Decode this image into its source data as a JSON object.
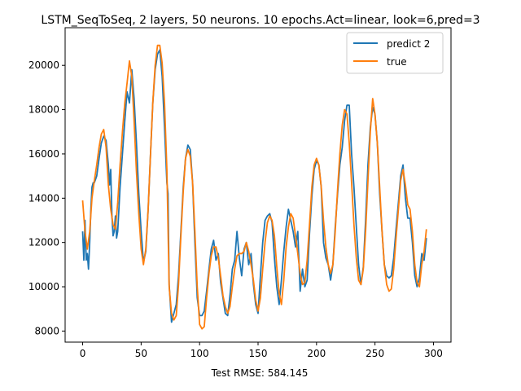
{
  "chart_data": {
    "type": "line",
    "title": "LSTM_SeqToSeq, 2 layers, 50 neurons. 10 epochs.Act=linear, look=6,pred=3",
    "xlabel": "Test RMSE: 584.145",
    "ylabel": "",
    "xlim": [
      -15,
      315
    ],
    "ylim": [
      7500,
      21700
    ],
    "xticks": [
      0,
      50,
      100,
      150,
      200,
      250,
      300
    ],
    "yticks": [
      8000,
      10000,
      12000,
      14000,
      16000,
      18000,
      20000
    ],
    "xtick_labels": [
      "0",
      "50",
      "100",
      "150",
      "200",
      "250",
      "300"
    ],
    "ytick_labels": [
      "8000",
      "10000",
      "12000",
      "14000",
      "16000",
      "18000",
      "20000"
    ],
    "grid": false,
    "legend_position": "top-right",
    "series": [
      {
        "name": "predict 2",
        "color": "#1f77b4",
        "points": [
          [
            0,
            12500
          ],
          [
            1,
            11200
          ],
          [
            2,
            13000
          ],
          [
            3,
            11200
          ],
          [
            4,
            11500
          ],
          [
            5,
            10800
          ],
          [
            6,
            12000
          ],
          [
            7,
            13500
          ],
          [
            8,
            14500
          ],
          [
            9,
            14700
          ],
          [
            10,
            14700
          ],
          [
            12,
            15000
          ],
          [
            14,
            15800
          ],
          [
            16,
            16500
          ],
          [
            18,
            16800
          ],
          [
            20,
            16600
          ],
          [
            22,
            15500
          ],
          [
            23,
            14600
          ],
          [
            24,
            15300
          ],
          [
            25,
            13200
          ],
          [
            26,
            12300
          ],
          [
            27,
            12500
          ],
          [
            28,
            13200
          ],
          [
            29,
            12200
          ],
          [
            30,
            12500
          ],
          [
            32,
            14500
          ],
          [
            34,
            16000
          ],
          [
            36,
            17500
          ],
          [
            38,
            18800
          ],
          [
            40,
            18300
          ],
          [
            42,
            19800
          ],
          [
            44,
            18500
          ],
          [
            46,
            16500
          ],
          [
            48,
            14200
          ],
          [
            50,
            12500
          ],
          [
            52,
            11100
          ],
          [
            54,
            11600
          ],
          [
            56,
            13500
          ],
          [
            58,
            16000
          ],
          [
            60,
            18300
          ],
          [
            62,
            19800
          ],
          [
            64,
            20500
          ],
          [
            66,
            20700
          ],
          [
            68,
            19500
          ],
          [
            70,
            17200
          ],
          [
            72,
            14700
          ],
          [
            73,
            14200
          ],
          [
            74,
            10100
          ],
          [
            76,
            8400
          ],
          [
            78,
            8800
          ],
          [
            80,
            9200
          ],
          [
            82,
            10500
          ],
          [
            84,
            12500
          ],
          [
            86,
            14500
          ],
          [
            88,
            15800
          ],
          [
            90,
            16400
          ],
          [
            92,
            16200
          ],
          [
            94,
            14700
          ],
          [
            96,
            12000
          ],
          [
            98,
            9500
          ],
          [
            100,
            8700
          ],
          [
            102,
            8700
          ],
          [
            104,
            8900
          ],
          [
            106,
            9800
          ],
          [
            108,
            10800
          ],
          [
            110,
            11700
          ],
          [
            112,
            12100
          ],
          [
            114,
            11200
          ],
          [
            116,
            11500
          ],
          [
            118,
            10200
          ],
          [
            120,
            9500
          ],
          [
            122,
            8800
          ],
          [
            124,
            8700
          ],
          [
            126,
            9600
          ],
          [
            128,
            10800
          ],
          [
            130,
            11200
          ],
          [
            132,
            12500
          ],
          [
            134,
            11300
          ],
          [
            136,
            10500
          ],
          [
            138,
            11700
          ],
          [
            140,
            12000
          ],
          [
            142,
            11000
          ],
          [
            144,
            11500
          ],
          [
            146,
            10100
          ],
          [
            148,
            9200
          ],
          [
            150,
            8800
          ],
          [
            152,
            10500
          ],
          [
            154,
            12000
          ],
          [
            156,
            13000
          ],
          [
            158,
            13200
          ],
          [
            160,
            13300
          ],
          [
            162,
            12900
          ],
          [
            164,
            11300
          ],
          [
            166,
            10000
          ],
          [
            168,
            9200
          ],
          [
            170,
            10300
          ],
          [
            172,
            11600
          ],
          [
            174,
            12700
          ],
          [
            176,
            13500
          ],
          [
            178,
            13000
          ],
          [
            180,
            12500
          ],
          [
            182,
            11800
          ],
          [
            184,
            12500
          ],
          [
            186,
            9800
          ],
          [
            188,
            10800
          ],
          [
            190,
            10000
          ],
          [
            192,
            10300
          ],
          [
            194,
            12400
          ],
          [
            196,
            14100
          ],
          [
            198,
            15300
          ],
          [
            200,
            15700
          ],
          [
            202,
            15500
          ],
          [
            204,
            14500
          ],
          [
            206,
            12000
          ],
          [
            208,
            11300
          ],
          [
            210,
            11000
          ],
          [
            212,
            10300
          ],
          [
            214,
            11000
          ],
          [
            216,
            12700
          ],
          [
            218,
            14200
          ],
          [
            220,
            15500
          ],
          [
            222,
            16300
          ],
          [
            224,
            17500
          ],
          [
            226,
            18200
          ],
          [
            228,
            18200
          ],
          [
            230,
            16000
          ],
          [
            232,
            14500
          ],
          [
            234,
            12700
          ],
          [
            236,
            11000
          ],
          [
            238,
            10100
          ],
          [
            240,
            10900
          ],
          [
            242,
            13000
          ],
          [
            244,
            15500
          ],
          [
            246,
            17200
          ],
          [
            248,
            18100
          ],
          [
            250,
            17800
          ],
          [
            252,
            16500
          ],
          [
            254,
            14200
          ],
          [
            256,
            12500
          ],
          [
            258,
            11000
          ],
          [
            260,
            10500
          ],
          [
            262,
            10400
          ],
          [
            264,
            10500
          ],
          [
            266,
            11300
          ],
          [
            268,
            12600
          ],
          [
            270,
            13800
          ],
          [
            272,
            15000
          ],
          [
            274,
            15500
          ],
          [
            276,
            14000
          ],
          [
            278,
            13100
          ],
          [
            280,
            13100
          ],
          [
            282,
            12000
          ],
          [
            284,
            10500
          ],
          [
            286,
            10000
          ],
          [
            288,
            10400
          ],
          [
            290,
            11500
          ],
          [
            292,
            11200
          ],
          [
            294,
            12200
          ]
        ]
      },
      {
        "name": "true",
        "color": "#ff7f0e",
        "points": [
          [
            0,
            13900
          ],
          [
            2,
            12500
          ],
          [
            4,
            11700
          ],
          [
            6,
            12500
          ],
          [
            8,
            14000
          ],
          [
            10,
            14800
          ],
          [
            12,
            15500
          ],
          [
            14,
            16300
          ],
          [
            16,
            16900
          ],
          [
            18,
            17100
          ],
          [
            20,
            16300
          ],
          [
            22,
            14600
          ],
          [
            24,
            13500
          ],
          [
            26,
            12800
          ],
          [
            28,
            12600
          ],
          [
            30,
            13800
          ],
          [
            32,
            15500
          ],
          [
            34,
            17000
          ],
          [
            36,
            18300
          ],
          [
            38,
            19200
          ],
          [
            40,
            20200
          ],
          [
            42,
            19500
          ],
          [
            44,
            17500
          ],
          [
            46,
            15200
          ],
          [
            48,
            13300
          ],
          [
            50,
            11700
          ],
          [
            52,
            11000
          ],
          [
            54,
            11700
          ],
          [
            56,
            13500
          ],
          [
            58,
            16000
          ],
          [
            60,
            18300
          ],
          [
            62,
            20000
          ],
          [
            64,
            20900
          ],
          [
            66,
            20900
          ],
          [
            68,
            20100
          ],
          [
            70,
            18300
          ],
          [
            72,
            15300
          ],
          [
            74,
            10000
          ],
          [
            76,
            8800
          ],
          [
            78,
            8500
          ],
          [
            80,
            8700
          ],
          [
            82,
            10100
          ],
          [
            84,
            12300
          ],
          [
            86,
            14300
          ],
          [
            88,
            15800
          ],
          [
            90,
            16200
          ],
          [
            92,
            15900
          ],
          [
            94,
            14700
          ],
          [
            96,
            12500
          ],
          [
            98,
            10000
          ],
          [
            100,
            8300
          ],
          [
            102,
            8100
          ],
          [
            104,
            8200
          ],
          [
            106,
            9500
          ],
          [
            108,
            10600
          ],
          [
            110,
            11400
          ],
          [
            112,
            11800
          ],
          [
            114,
            11800
          ],
          [
            116,
            11300
          ],
          [
            118,
            10500
          ],
          [
            120,
            9600
          ],
          [
            122,
            9100
          ],
          [
            124,
            8800
          ],
          [
            126,
            9100
          ],
          [
            128,
            10000
          ],
          [
            130,
            10800
          ],
          [
            132,
            11400
          ],
          [
            134,
            11500
          ],
          [
            136,
            11500
          ],
          [
            138,
            11600
          ],
          [
            140,
            12000
          ],
          [
            142,
            11600
          ],
          [
            144,
            11000
          ],
          [
            146,
            10300
          ],
          [
            148,
            9400
          ],
          [
            150,
            8900
          ],
          [
            152,
            9500
          ],
          [
            154,
            10800
          ],
          [
            156,
            12000
          ],
          [
            158,
            12900
          ],
          [
            160,
            13200
          ],
          [
            162,
            13000
          ],
          [
            164,
            12300
          ],
          [
            166,
            10900
          ],
          [
            168,
            9700
          ],
          [
            170,
            9200
          ],
          [
            172,
            10300
          ],
          [
            174,
            11800
          ],
          [
            176,
            12700
          ],
          [
            178,
            13300
          ],
          [
            180,
            13100
          ],
          [
            182,
            12300
          ],
          [
            184,
            11500
          ],
          [
            186,
            10600
          ],
          [
            188,
            10100
          ],
          [
            190,
            10200
          ],
          [
            192,
            11200
          ],
          [
            194,
            12800
          ],
          [
            196,
            14500
          ],
          [
            198,
            15500
          ],
          [
            200,
            15800
          ],
          [
            202,
            15500
          ],
          [
            204,
            14500
          ],
          [
            206,
            13000
          ],
          [
            208,
            11800
          ],
          [
            210,
            11000
          ],
          [
            212,
            10600
          ],
          [
            214,
            11000
          ],
          [
            216,
            12500
          ],
          [
            218,
            14400
          ],
          [
            220,
            16000
          ],
          [
            222,
            17300
          ],
          [
            224,
            18000
          ],
          [
            226,
            17800
          ],
          [
            228,
            16500
          ],
          [
            230,
            14700
          ],
          [
            232,
            12800
          ],
          [
            234,
            11300
          ],
          [
            236,
            10300
          ],
          [
            238,
            10100
          ],
          [
            240,
            10800
          ],
          [
            242,
            12500
          ],
          [
            244,
            14800
          ],
          [
            246,
            17000
          ],
          [
            248,
            18500
          ],
          [
            250,
            17800
          ],
          [
            252,
            16500
          ],
          [
            254,
            14500
          ],
          [
            256,
            12500
          ],
          [
            258,
            11000
          ],
          [
            260,
            10100
          ],
          [
            262,
            9800
          ],
          [
            264,
            9900
          ],
          [
            266,
            10800
          ],
          [
            268,
            12200
          ],
          [
            270,
            13500
          ],
          [
            272,
            14800
          ],
          [
            274,
            15300
          ],
          [
            276,
            14600
          ],
          [
            278,
            13700
          ],
          [
            280,
            13500
          ],
          [
            282,
            12500
          ],
          [
            284,
            11000
          ],
          [
            286,
            10200
          ],
          [
            288,
            10000
          ],
          [
            290,
            11000
          ],
          [
            292,
            11600
          ],
          [
            294,
            12600
          ]
        ]
      }
    ]
  }
}
